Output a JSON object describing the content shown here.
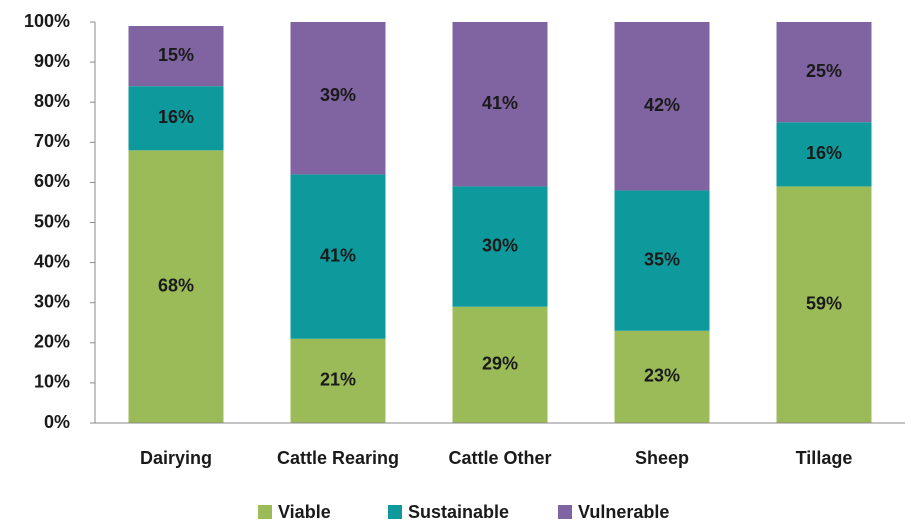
{
  "chart_data": {
    "type": "stacked_bar",
    "categories": [
      "Dairying",
      "Cattle Rearing",
      "Cattle Other",
      "Sheep",
      "Tillage"
    ],
    "series": [
      {
        "name": "Viable",
        "color": "#9bbb59",
        "values": [
          68,
          21,
          29,
          23,
          59
        ],
        "value_labels": [
          "68%",
          "21%",
          "29%",
          "23%",
          "59%"
        ]
      },
      {
        "name": "Sustainable",
        "color": "#0e9a9c",
        "values": [
          16,
          41,
          30,
          35,
          16
        ],
        "value_labels": [
          "16%",
          "41%",
          "30%",
          "35%",
          "16%"
        ]
      },
      {
        "name": "Vulnerable",
        "color": "#8064a2",
        "values": [
          15,
          39,
          41,
          42,
          25
        ],
        "value_labels": [
          "15%",
          "39%",
          "41%",
          "42%",
          "25%"
        ]
      }
    ],
    "ylim": [
      0,
      100
    ],
    "yticks": [
      {
        "value": 0,
        "label": "0%"
      },
      {
        "value": 10,
        "label": "10%"
      },
      {
        "value": 20,
        "label": "20%"
      },
      {
        "value": 30,
        "label": "30%"
      },
      {
        "value": 40,
        "label": "40%"
      },
      {
        "value": 50,
        "label": "50%"
      },
      {
        "value": 60,
        "label": "60%"
      },
      {
        "value": 70,
        "label": "70%"
      },
      {
        "value": 80,
        "label": "80%"
      },
      {
        "value": 90,
        "label": "90%"
      },
      {
        "value": 100,
        "label": "100%"
      }
    ],
    "grid": false,
    "legend": "bottom"
  }
}
